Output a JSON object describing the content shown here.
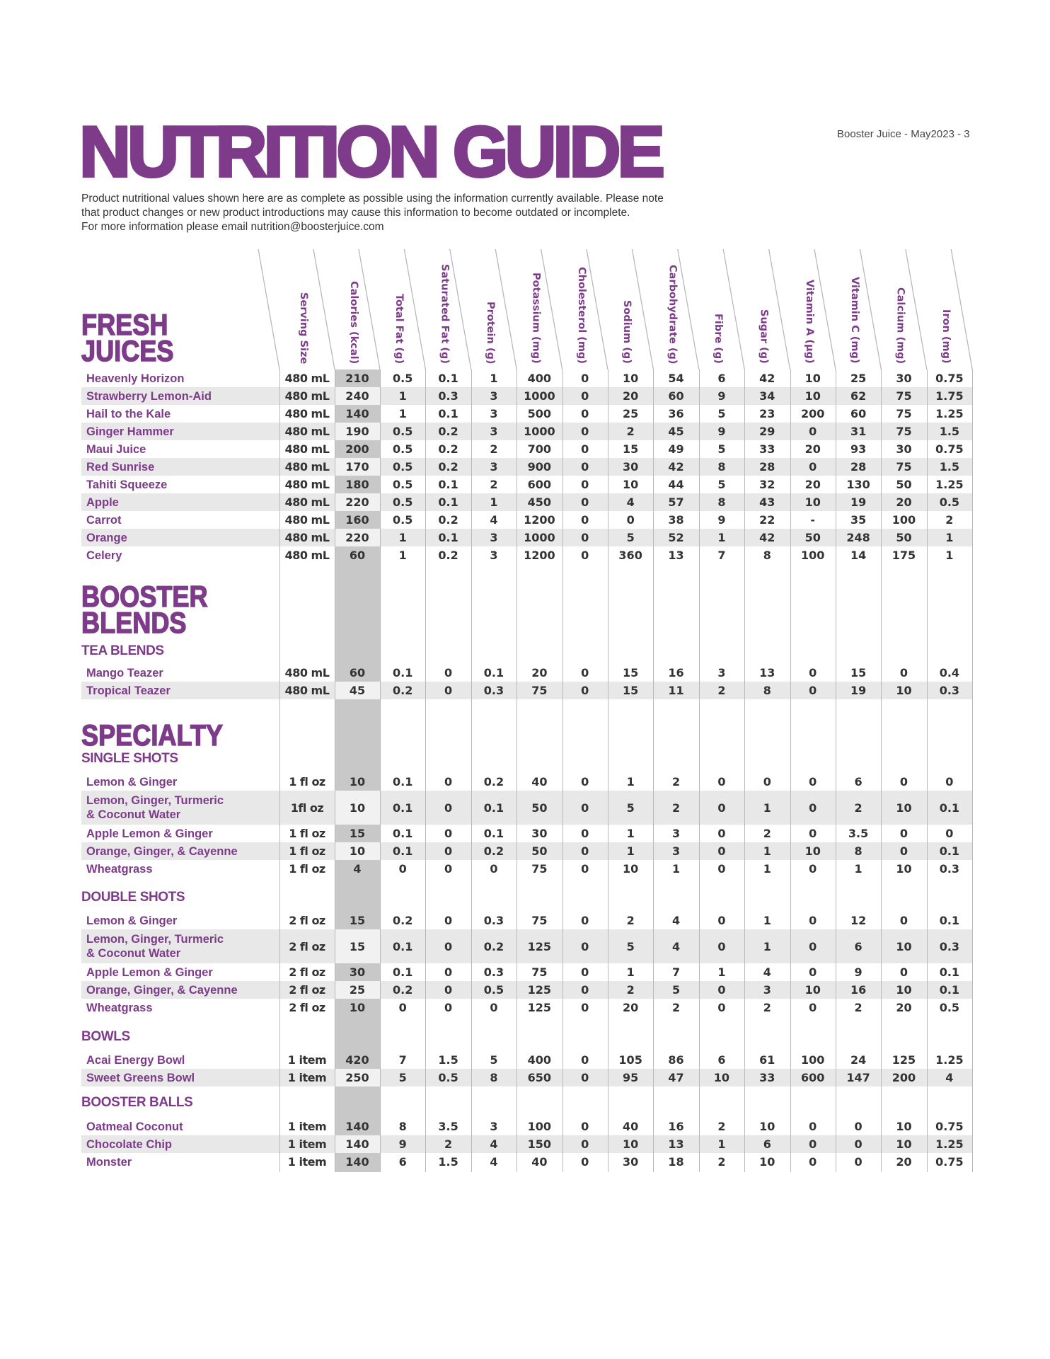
{
  "title": "NUTRITION GUIDE",
  "page_ref": "Booster Juice - May2023 - 3",
  "intro": [
    "Product nutritional values shown here are as complete as possible using the information currently available. Please note",
    "that product changes or new product introductions may cause this information to become outdated or incomplete.",
    "For more information please email  nutrition@boosterjuice.com"
  ],
  "colors": {
    "brand_purple": "#7d3b8a",
    "calorie_column": "#c8c8c8",
    "row_shade": "#e8e8e9"
  },
  "columns": [
    "Serving Size",
    "Calories (kcal)",
    "Total Fat (g)",
    "Saturated Fat (g)",
    "Protein (g)",
    "Potassium (mg)",
    "Cholesterol (mg)",
    "Sodium (g)",
    "Carbohydrate (g)",
    "Fibre (g)",
    "Sugar (g)",
    "Vitamin A (µg)",
    "Vitamin C (mg)",
    "Calcium (mg)",
    "Iron (mg)"
  ],
  "sections": [
    {
      "title": [
        "FRESH",
        "JUICES"
      ],
      "groups": [
        {
          "title": "",
          "rows": [
            [
              "Heavenly Horizon",
              "480 mL",
              "210",
              "0.5",
              "0.1",
              "1",
              "400",
              "0",
              "10",
              "54",
              "6",
              "42",
              "10",
              "25",
              "30",
              "0.75"
            ],
            [
              "Strawberry Lemon-Aid",
              "480 mL",
              "240",
              "1",
              "0.3",
              "3",
              "1000",
              "0",
              "20",
              "60",
              "9",
              "34",
              "10",
              "62",
              "75",
              "1.75"
            ],
            [
              "Hail to the Kale",
              "480 mL",
              "140",
              "1",
              "0.1",
              "3",
              "500",
              "0",
              "25",
              "36",
              "5",
              "23",
              "200",
              "60",
              "75",
              "1.25"
            ],
            [
              "Ginger Hammer",
              "480 mL",
              "190",
              "0.5",
              "0.2",
              "3",
              "1000",
              "0",
              "2",
              "45",
              "9",
              "29",
              "0",
              "31",
              "75",
              "1.5"
            ],
            [
              "Maui Juice",
              "480 mL",
              "200",
              "0.5",
              "0.2",
              "2",
              "700",
              "0",
              "15",
              "49",
              "5",
              "33",
              "20",
              "93",
              "30",
              "0.75"
            ],
            [
              "Red Sunrise",
              "480 mL",
              "170",
              "0.5",
              "0.2",
              "3",
              "900",
              "0",
              "30",
              "42",
              "8",
              "28",
              "0",
              "28",
              "75",
              "1.5"
            ],
            [
              "Tahiti Squeeze",
              "480 mL",
              "180",
              "0.5",
              "0.1",
              "2",
              "600",
              "0",
              "10",
              "44",
              "5",
              "32",
              "20",
              "130",
              "50",
              "1.25"
            ],
            [
              "Apple",
              "480 mL",
              "220",
              "0.5",
              "0.1",
              "1",
              "450",
              "0",
              "4",
              "57",
              "8",
              "43",
              "10",
              "19",
              "20",
              "0.5"
            ],
            [
              "Carrot",
              "480 mL",
              "160",
              "0.5",
              "0.2",
              "4",
              "1200",
              "0",
              "0",
              "38",
              "9",
              "22",
              "-",
              "35",
              "100",
              "2"
            ],
            [
              "Orange",
              "480 mL",
              "220",
              "1",
              "0.1",
              "3",
              "1000",
              "0",
              "5",
              "52",
              "1",
              "42",
              "50",
              "248",
              "50",
              "1"
            ],
            [
              "Celery",
              "480 mL",
              "60",
              "1",
              "0.2",
              "3",
              "1200",
              "0",
              "360",
              "13",
              "7",
              "8",
              "100",
              "14",
              "175",
              "1"
            ]
          ]
        }
      ]
    },
    {
      "title": [
        "BOOSTER",
        "BLENDS"
      ],
      "groups": [
        {
          "title": "TEA BLENDS",
          "rows": [
            [
              "Mango Teazer",
              "480 mL",
              "60",
              "0.1",
              "0",
              "0.1",
              "20",
              "0",
              "15",
              "16",
              "3",
              "13",
              "0",
              "15",
              "0",
              "0.4"
            ],
            [
              "Tropical Teazer",
              "480 mL",
              "45",
              "0.2",
              "0",
              "0.3",
              "75",
              "0",
              "15",
              "11",
              "2",
              "8",
              "0",
              "19",
              "10",
              "0.3"
            ]
          ]
        }
      ]
    },
    {
      "title": [
        "SPECIALTY"
      ],
      "groups": [
        {
          "title": "SINGLE SHOTS",
          "rows": [
            [
              "Lemon & Ginger",
              "1 fl oz",
              "10",
              "0.1",
              "0",
              "0.2",
              "40",
              "0",
              "1",
              "2",
              "0",
              "0",
              "0",
              "6",
              "0",
              "0"
            ],
            [
              "Lemon, Ginger, Turmeric\n& Coconut Water",
              "1fl oz",
              "10",
              "0.1",
              "0",
              "0.1",
              "50",
              "0",
              "5",
              "2",
              "0",
              "1",
              "0",
              "2",
              "10",
              "0.1"
            ],
            [
              "Apple Lemon & Ginger",
              "1 fl oz",
              "15",
              "0.1",
              "0",
              "0.1",
              "30",
              "0",
              "1",
              "3",
              "0",
              "2",
              "0",
              "3.5",
              "0",
              "0"
            ],
            [
              "Orange, Ginger, & Cayenne",
              "1 fl oz",
              "10",
              "0.1",
              "0",
              "0.2",
              "50",
              "0",
              "1",
              "3",
              "0",
              "1",
              "10",
              "8",
              "0",
              "0.1"
            ],
            [
              "Wheatgrass",
              "1 fl oz",
              "4",
              "0",
              "0",
              "0",
              "75",
              "0",
              "10",
              "1",
              "0",
              "1",
              "0",
              "1",
              "10",
              "0.3"
            ]
          ]
        },
        {
          "title": "DOUBLE SHOTS",
          "rows": [
            [
              "Lemon & Ginger",
              "2 fl oz",
              "15",
              "0.2",
              "0",
              "0.3",
              "75",
              "0",
              "2",
              "4",
              "0",
              "1",
              "0",
              "12",
              "0",
              "0.1"
            ],
            [
              "Lemon, Ginger, Turmeric\n& Coconut Water",
              "2 fl oz",
              "15",
              "0.1",
              "0",
              "0.2",
              "125",
              "0",
              "5",
              "4",
              "0",
              "1",
              "0",
              "6",
              "10",
              "0.3"
            ],
            [
              "Apple Lemon & Ginger",
              "2 fl oz",
              "30",
              "0.1",
              "0",
              "0.3",
              "75",
              "0",
              "1",
              "7",
              "1",
              "4",
              "0",
              "9",
              "0",
              "0.1"
            ],
            [
              "Orange, Ginger, & Cayenne",
              "2 fl oz",
              "25",
              "0.2",
              "0",
              "0.5",
              "125",
              "0",
              "2",
              "5",
              "0",
              "3",
              "10",
              "16",
              "10",
              "0.1"
            ],
            [
              "Wheatgrass",
              "2 fl oz",
              "10",
              "0",
              "0",
              "0",
              "125",
              "0",
              "20",
              "2",
              "0",
              "2",
              "0",
              "2",
              "20",
              "0.5"
            ]
          ]
        },
        {
          "title": "BOWLS",
          "rows": [
            [
              "Acai Energy Bowl",
              "1 item",
              "420",
              "7",
              "1.5",
              "5",
              "400",
              "0",
              "105",
              "86",
              "6",
              "61",
              "100",
              "24",
              "125",
              "1.25"
            ],
            [
              "Sweet Greens Bowl",
              "1 item",
              "250",
              "5",
              "0.5",
              "8",
              "650",
              "0",
              "95",
              "47",
              "10",
              "33",
              "600",
              "147",
              "200",
              "4"
            ]
          ]
        },
        {
          "title": "BOOSTER BALLS",
          "rows": [
            [
              "Oatmeal Coconut",
              "1 item",
              "140",
              "8",
              "3.5",
              "3",
              "100",
              "0",
              "40",
              "16",
              "2",
              "10",
              "0",
              "0",
              "10",
              "0.75"
            ],
            [
              "Chocolate Chip",
              "1 item",
              "140",
              "9",
              "2",
              "4",
              "150",
              "0",
              "10",
              "13",
              "1",
              "6",
              "0",
              "0",
              "10",
              "1.25"
            ],
            [
              "Monster",
              "1 item",
              "140",
              "6",
              "1.5",
              "4",
              "40",
              "0",
              "30",
              "18",
              "2",
              "10",
              "0",
              "0",
              "20",
              "0.75"
            ]
          ]
        }
      ]
    }
  ]
}
